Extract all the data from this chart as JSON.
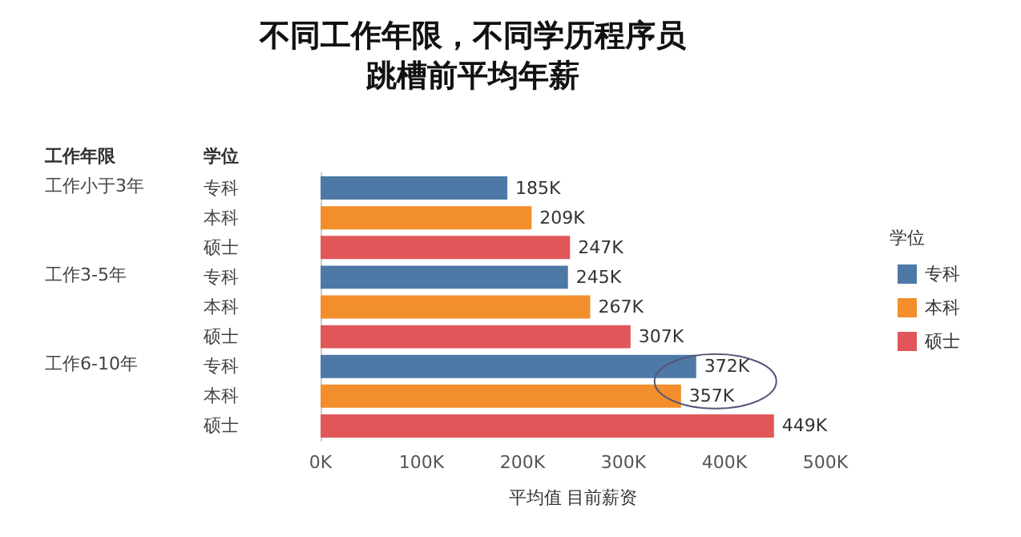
{
  "chart_data": {
    "type": "bar",
    "orientation": "horizontal",
    "title": "不同工作年限，不同学历程序员",
    "subtitle": "跳槽前平均年薪",
    "xlabel": "平均值 目前薪资",
    "ylabel": "学位",
    "legend_title": "学位",
    "legend": "right",
    "annotations": [
      "工作年限",
      "工作小于3年",
      "工作3-5年",
      "工作6-10年"
    ],
    "categories": [
      "专科",
      "本科",
      "硕士",
      "专科",
      "本科",
      "硕士",
      "专科",
      "本科",
      "硕士"
    ],
    "series": [
      {
        "name": "专科",
        "color": "#4e79a7",
        "values": [
          185,
          null,
          null,
          245,
          null,
          null,
          372,
          null,
          null
        ],
        "value_labels": [
          "185K",
          null,
          null,
          "245K",
          null,
          null,
          "372K",
          null,
          null
        ]
      },
      {
        "name": "本科",
        "color": "#f28e2b",
        "values": [
          null,
          209,
          null,
          null,
          267,
          null,
          null,
          357,
          null
        ],
        "value_labels": [
          null,
          "209K",
          null,
          null,
          "267K",
          null,
          null,
          "357K",
          null
        ]
      },
      {
        "name": "硕士",
        "color": "#e15759",
        "values": [
          null,
          null,
          247,
          null,
          null,
          307,
          null,
          null,
          449
        ],
        "value_labels": [
          null,
          null,
          "247K",
          null,
          null,
          "307K",
          null,
          null,
          "449K"
        ]
      }
    ],
    "xlim": [
      0,
      500
    ],
    "xticks": [
      {
        "value": 0,
        "label": "0K"
      },
      {
        "value": 100,
        "label": "100K"
      },
      {
        "value": 200,
        "label": "200K"
      },
      {
        "value": 300,
        "label": "300K"
      },
      {
        "value": 400,
        "label": "400K"
      },
      {
        "value": 500,
        "label": "500K"
      }
    ],
    "grid": false
  }
}
